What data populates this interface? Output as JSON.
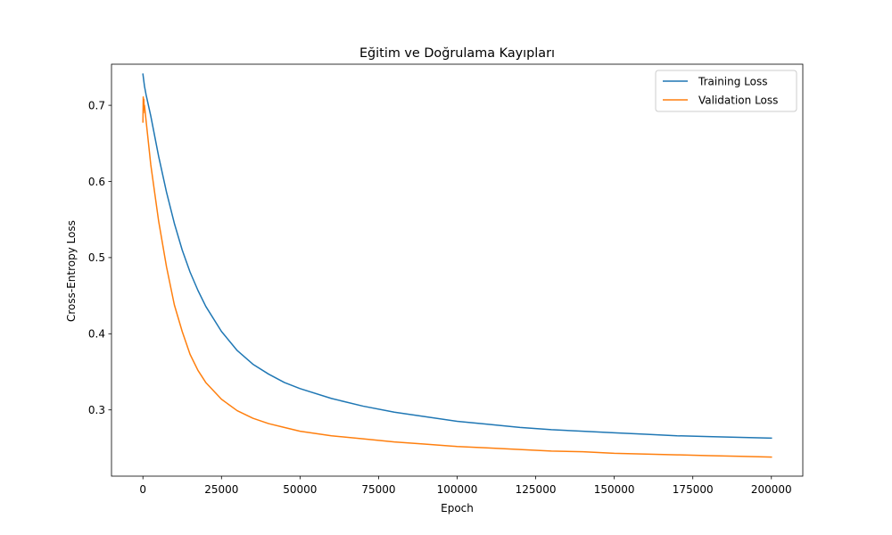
{
  "chart_data": {
    "type": "line",
    "title": "Eğitim ve Doğrulama Kayıpları",
    "xlabel": "Epoch",
    "ylabel": "Cross-Entropy Loss",
    "xlim": [
      -10000,
      210000
    ],
    "ylim": [
      0.213,
      0.754
    ],
    "x_ticks": [
      0,
      25000,
      50000,
      75000,
      100000,
      125000,
      150000,
      175000,
      200000
    ],
    "y_ticks": [
      0.3,
      0.4,
      0.5,
      0.6,
      0.7
    ],
    "grid": false,
    "legend_position": "upper right",
    "series": [
      {
        "name": "Training Loss",
        "color": "#1f77b4",
        "x": [
          0,
          500,
          1000,
          2500,
          5000,
          7500,
          10000,
          12500,
          15000,
          17500,
          20000,
          25000,
          30000,
          35000,
          40000,
          45000,
          50000,
          60000,
          70000,
          80000,
          90000,
          100000,
          110000,
          120000,
          130000,
          140000,
          150000,
          160000,
          170000,
          180000,
          190000,
          200000
        ],
        "y": [
          0.741,
          0.725,
          0.714,
          0.686,
          0.633,
          0.586,
          0.545,
          0.51,
          0.481,
          0.457,
          0.436,
          0.403,
          0.378,
          0.36,
          0.347,
          0.336,
          0.328,
          0.315,
          0.305,
          0.297,
          0.291,
          0.285,
          0.281,
          0.277,
          0.274,
          0.272,
          0.27,
          0.268,
          0.266,
          0.265,
          0.264,
          0.263
        ]
      },
      {
        "name": "Validation Loss",
        "color": "#ff7f0e",
        "x": [
          0,
          100,
          200,
          300,
          400,
          500,
          1000,
          2500,
          5000,
          7500,
          10000,
          12500,
          15000,
          17500,
          20000,
          25000,
          30000,
          35000,
          40000,
          45000,
          50000,
          60000,
          70000,
          80000,
          90000,
          100000,
          110000,
          120000,
          130000,
          140000,
          150000,
          160000,
          170000,
          180000,
          190000,
          200000
        ],
        "y": [
          0.678,
          0.711,
          0.69,
          0.708,
          0.695,
          0.7,
          0.68,
          0.622,
          0.548,
          0.488,
          0.438,
          0.403,
          0.373,
          0.352,
          0.336,
          0.314,
          0.299,
          0.289,
          0.282,
          0.277,
          0.272,
          0.266,
          0.262,
          0.258,
          0.255,
          0.252,
          0.25,
          0.248,
          0.246,
          0.245,
          0.243,
          0.242,
          0.241,
          0.24,
          0.239,
          0.238
        ]
      }
    ]
  }
}
